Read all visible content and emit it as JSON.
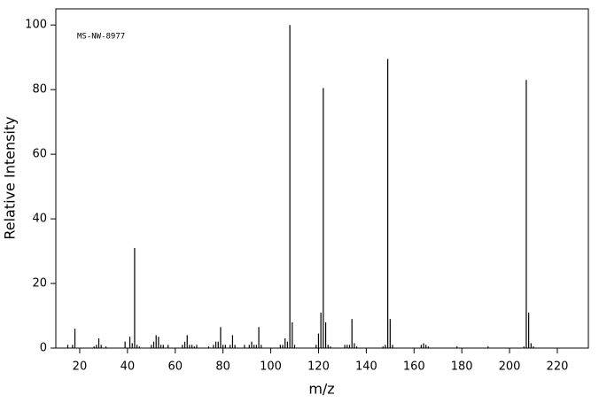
{
  "chart_data": {
    "type": "stem",
    "annotation": "MS-NW-8977",
    "xlabel": "m/z",
    "ylabel": "Relative Intensity",
    "x": [
      15,
      17,
      18,
      26,
      27,
      28,
      29,
      31,
      39,
      41,
      42,
      43,
      44,
      45,
      50,
      51,
      52,
      53,
      54,
      55,
      57,
      63,
      64,
      65,
      66,
      67,
      68,
      69,
      74,
      76,
      77,
      78,
      79,
      80,
      81,
      83,
      84,
      85,
      89,
      91,
      92,
      93,
      94,
      95,
      96,
      104,
      105,
      106,
      107,
      108,
      109,
      110,
      119,
      120,
      121,
      122,
      123,
      124,
      125,
      131,
      132,
      133,
      134,
      135,
      136,
      147,
      148,
      149,
      150,
      151,
      163,
      164,
      165,
      166,
      178,
      191,
      206,
      207,
      208,
      209,
      210
    ],
    "values": [
      1,
      1,
      6,
      0.5,
      1,
      3,
      1,
      0.5,
      2,
      3.5,
      1.5,
      31,
      1,
      0.5,
      1,
      2,
      4,
      3.5,
      1,
      1,
      1,
      1,
      2,
      4,
      1,
      1,
      0.5,
      1,
      0.5,
      1,
      2,
      2,
      6.5,
      1,
      1,
      1,
      4,
      1,
      1,
      1,
      2,
      1,
      1,
      6.5,
      1,
      1,
      1,
      3,
      2,
      100,
      8,
      1,
      1,
      4.5,
      11,
      80.5,
      8,
      1,
      0.5,
      1,
      1,
      1,
      9,
      1.5,
      0.5,
      0.5,
      1,
      89.5,
      9,
      1,
      1,
      1.5,
      1,
      0.5,
      0.5,
      0.5,
      0.5,
      83,
      11,
      1.5,
      0.5
    ],
    "color": "#000000",
    "xlim": [
      10,
      233
    ],
    "xticks": [
      20,
      40,
      60,
      80,
      100,
      120,
      140,
      160,
      180,
      200,
      220
    ],
    "ylim": [
      0,
      105
    ],
    "yticks": [
      0,
      20,
      40,
      60,
      80,
      100
    ]
  }
}
